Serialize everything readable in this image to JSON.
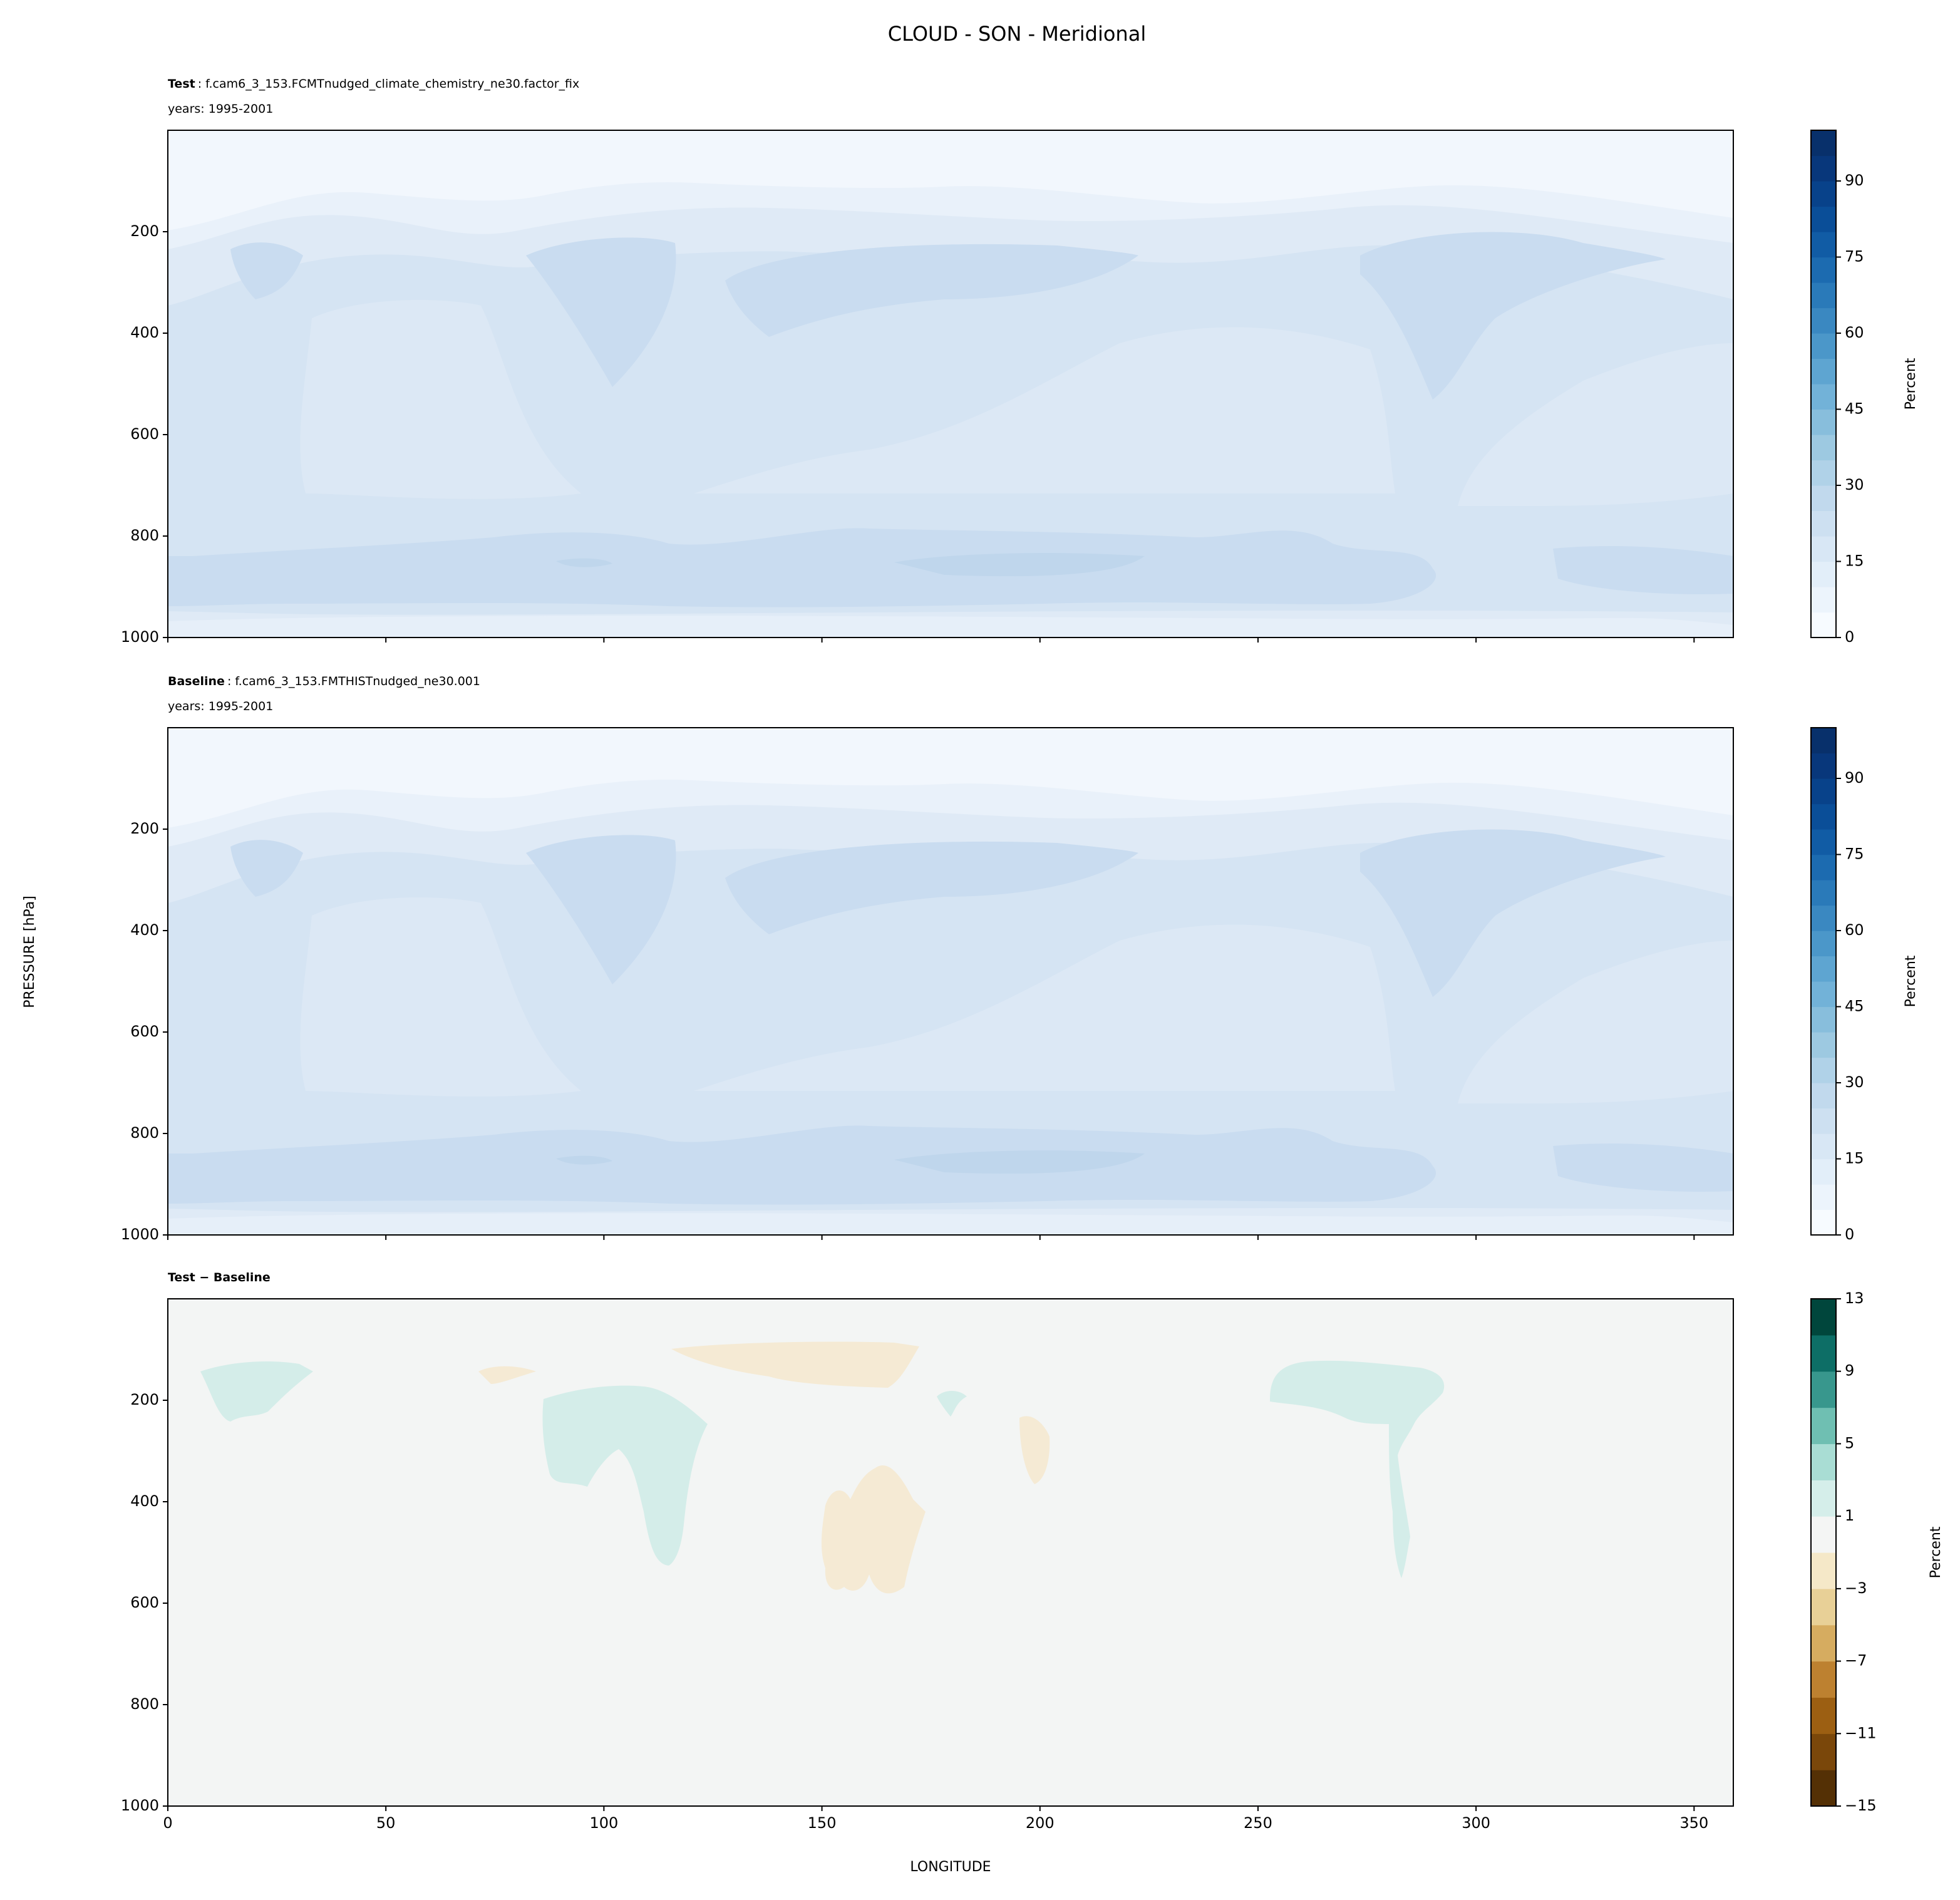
{
  "title": "CLOUD - SON - Meridional",
  "ylabel": "PRESSURE [hPa]",
  "chart_data": [
    {
      "type": "contour",
      "title_bold": "Test",
      "title_rest": ": f.cam6_3_153.FCMTnudged_climate_chemistry_ne30.factor_fix",
      "subtitle": "years: 1995-2001",
      "xlim": [
        0,
        359
      ],
      "xticks": [
        0,
        50,
        100,
        150,
        200,
        250,
        300,
        350
      ],
      "xtick_labels": false,
      "ylim": [
        1000,
        0
      ],
      "yticks": [
        200,
        400,
        600,
        800,
        1000
      ],
      "colorbar": {
        "label": "Percent",
        "lim": [
          0,
          100
        ],
        "ticks": [
          0,
          15,
          30,
          45,
          60,
          75,
          90
        ],
        "levels": [
          0,
          5,
          10,
          15,
          20,
          25,
          30,
          35,
          40,
          45,
          50,
          55,
          60,
          65,
          70,
          75,
          80,
          85,
          90,
          95,
          100
        ],
        "colors": [
          "#f7fbff",
          "#ecf4fc",
          "#e2eef9",
          "#d8e7f5",
          "#cde0f1",
          "#c1d9ed",
          "#b0d2e8",
          "#9dc9e1",
          "#88bedc",
          "#72b2d8",
          "#5ea5d1",
          "#4b97c9",
          "#3a88c1",
          "#2a7ab9",
          "#1c6bb0",
          "#115ca5",
          "#0a4e98",
          "#08428a",
          "#08377b",
          "#08306b"
        ]
      }
    },
    {
      "type": "contour",
      "title_bold": "Baseline",
      "title_rest": ": f.cam6_3_153.FMTHISTnudged_ne30.001",
      "subtitle": "years: 1995-2001",
      "xlim": [
        0,
        359
      ],
      "xticks": [
        0,
        50,
        100,
        150,
        200,
        250,
        300,
        350
      ],
      "xtick_labels": false,
      "ylim": [
        1000,
        0
      ],
      "yticks": [
        200,
        400,
        600,
        800,
        1000
      ],
      "colorbar": {
        "label": "Percent",
        "lim": [
          0,
          100
        ],
        "ticks": [
          0,
          15,
          30,
          45,
          60,
          75,
          90
        ],
        "levels": [
          0,
          5,
          10,
          15,
          20,
          25,
          30,
          35,
          40,
          45,
          50,
          55,
          60,
          65,
          70,
          75,
          80,
          85,
          90,
          95,
          100
        ],
        "colors": [
          "#f7fbff",
          "#ecf4fc",
          "#e2eef9",
          "#d8e7f5",
          "#cde0f1",
          "#c1d9ed",
          "#b0d2e8",
          "#9dc9e1",
          "#88bedc",
          "#72b2d8",
          "#5ea5d1",
          "#4b97c9",
          "#3a88c1",
          "#2a7ab9",
          "#1c6bb0",
          "#115ca5",
          "#0a4e98",
          "#08428a",
          "#08377b",
          "#08306b"
        ]
      }
    },
    {
      "type": "contour",
      "title_bold": "Test − Baseline",
      "xlim": [
        0,
        359
      ],
      "xticks": [
        0,
        50,
        100,
        150,
        200,
        250,
        300,
        350
      ],
      "xtick_labels": true,
      "xlabel": "LONGITUDE",
      "ylim": [
        1000,
        0
      ],
      "yticks": [
        200,
        400,
        600,
        800,
        1000
      ],
      "colorbar": {
        "label": "Percent",
        "lim": [
          -15,
          13
        ],
        "ticks": [
          {
            "value": -15,
            "label": "−15"
          },
          {
            "value": -11,
            "label": "−11"
          },
          {
            "value": -7,
            "label": "−7"
          },
          {
            "value": -3,
            "label": "−3"
          },
          1,
          5,
          9,
          13
        ],
        "levels": [
          -15,
          -13,
          -11,
          -9,
          -7,
          -5,
          -3,
          -1,
          1,
          3,
          5,
          7,
          9,
          11,
          13
        ],
        "colors": [
          "#543005",
          "#7a470a",
          "#9c5f12",
          "#bd8130",
          "#d6ac60",
          "#e8d097",
          "#f5e8c8",
          "#f4f5f4",
          "#d5eeea",
          "#a9ddd4",
          "#6fbfb2",
          "#38978d",
          "#0d6e66",
          "#00463c"
        ]
      }
    }
  ]
}
